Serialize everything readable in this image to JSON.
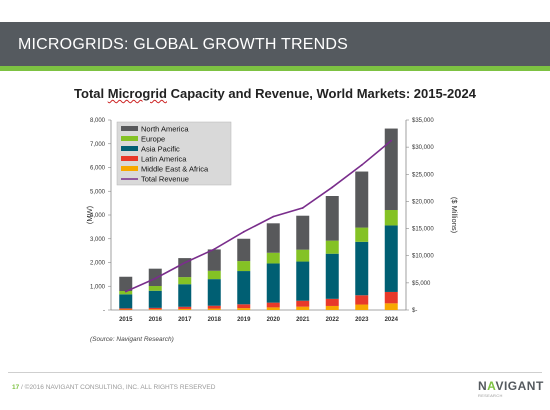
{
  "slide": {
    "title": "MICROGRIDS: GLOBAL GROWTH TRENDS",
    "chart_title_prefix": "Total ",
    "chart_title_squiggle": "Microgrid",
    "chart_title_suffix": " Capacity and Revenue, World Markets: 2015-2024",
    "source": "(Source: Navigant Research)",
    "footer_number": "17",
    "footer_text": " / ©2016 NAVIGANT CONSULTING, INC. ALL RIGHTS RESERVED",
    "logo_text_1": "N",
    "logo_text_accent": "A",
    "logo_text_2": "VIGANT",
    "logo_sub": "RESEARCH"
  },
  "chart_data": {
    "type": "bar",
    "stacked": true,
    "categories": [
      "2015",
      "2016",
      "2017",
      "2018",
      "2019",
      "2020",
      "2021",
      "2022",
      "2023",
      "2024"
    ],
    "series": [
      {
        "name": "Middle East & Africa",
        "color": "#f7a800",
        "values": [
          20,
          30,
          45,
          60,
          80,
          110,
          140,
          170,
          230,
          280
        ]
      },
      {
        "name": "Latin America",
        "color": "#e8392a",
        "values": [
          50,
          60,
          90,
          120,
          160,
          200,
          250,
          300,
          390,
          480
        ]
      },
      {
        "name": "Asia Pacific",
        "color": "#005f73",
        "values": [
          590,
          720,
          950,
          1120,
          1400,
          1650,
          1650,
          1900,
          2250,
          2800
        ]
      },
      {
        "name": "Europe",
        "color": "#84c225",
        "values": [
          140,
          200,
          300,
          350,
          420,
          450,
          500,
          550,
          600,
          650
        ]
      },
      {
        "name": "North America",
        "color": "#58595b",
        "values": [
          600,
          730,
          800,
          900,
          940,
          1240,
          1430,
          1880,
          2360,
          3430
        ]
      }
    ],
    "line": {
      "name": "Total Revenue",
      "color": "#7a2e8c",
      "axis": "right",
      "values": [
        3400,
        5800,
        8700,
        11200,
        14400,
        17200,
        18800,
        22600,
        26700,
        31200
      ]
    },
    "ylabel": "(MW)",
    "y2label": "($ Millions)",
    "ylim": [
      0,
      8000
    ],
    "yticks": [
      0,
      1000,
      2000,
      3000,
      4000,
      5000,
      6000,
      7000,
      8000
    ],
    "ytick_labels": [
      "-",
      "1,000",
      "2,000",
      "3,000",
      "4,000",
      "5,000",
      "6,000",
      "7,000",
      "8,000"
    ],
    "y2lim": [
      0,
      35000
    ],
    "y2ticks": [
      0,
      5000,
      10000,
      15000,
      20000,
      25000,
      30000,
      35000
    ],
    "y2tick_labels": [
      "$-",
      "$5,000",
      "$10,000",
      "$15,000",
      "$20,000",
      "$25,000",
      "$30,000",
      "$35,000"
    ],
    "legend_position": "top-left",
    "legend_order": [
      "North America",
      "Europe",
      "Asia Pacific",
      "Latin America",
      "Middle East & Africa",
      "Total Revenue"
    ],
    "grid": false
  }
}
